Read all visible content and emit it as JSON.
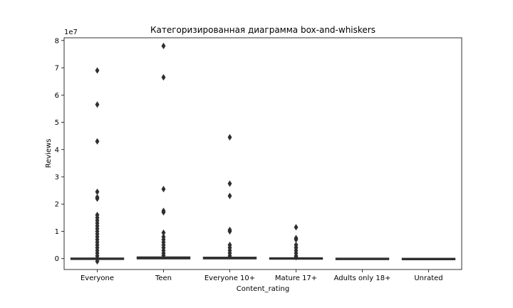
{
  "chart_data": {
    "type": "box",
    "title": "Категоризированная диаграмма box-and-whiskers",
    "xlabel": "Content_rating",
    "ylabel": "Reviews",
    "y_scale_label": "1e7",
    "categories": [
      "Everyone",
      "Teen",
      "Everyone 10+",
      "Mature 17+",
      "Adults only 18+",
      "Unrated"
    ],
    "ylim": [
      -0.4,
      8.1
    ],
    "yticks": [
      0,
      1,
      2,
      3,
      4,
      5,
      6,
      7,
      8
    ],
    "ytick_labels": [
      "0",
      "1",
      "2",
      "3",
      "4",
      "5",
      "6",
      "7",
      "8"
    ],
    "grid": false,
    "colors": {
      "box": "#2f2f2f",
      "axes": "#000000",
      "background": "#ffffff"
    },
    "boxes": [
      {
        "category": "Everyone",
        "q1": 0.0,
        "median": 0.0,
        "q3": 0.01,
        "whisker_low": 0.0,
        "whisker_high": 0.02,
        "outliers": [
          0.02,
          0.1,
          0.2,
          0.3,
          0.4,
          0.5,
          0.6,
          0.7,
          0.8,
          0.9,
          1.0,
          1.1,
          1.2,
          1.3,
          1.4,
          1.5,
          1.6,
          2.2,
          2.25,
          2.45,
          4.3,
          5.65,
          6.9,
          -0.1
        ]
      },
      {
        "category": "Teen",
        "q1": 0.0,
        "median": 0.01,
        "q3": 0.05,
        "whisker_low": 0.0,
        "whisker_high": 0.1,
        "outliers": [
          0.12,
          0.2,
          0.3,
          0.4,
          0.5,
          0.6,
          0.7,
          0.8,
          0.95,
          1.7,
          1.75,
          2.55,
          6.65,
          7.8
        ]
      },
      {
        "category": "Everyone 10+",
        "q1": 0.0,
        "median": 0.01,
        "q3": 0.04,
        "whisker_low": 0.0,
        "whisker_high": 0.08,
        "outliers": [
          0.1,
          0.2,
          0.3,
          0.4,
          0.5,
          1.0,
          1.05,
          2.3,
          2.75,
          4.45
        ]
      },
      {
        "category": "Mature 17+",
        "q1": 0.0,
        "median": 0.0,
        "q3": 0.02,
        "whisker_low": 0.0,
        "whisker_high": 0.04,
        "outliers": [
          0.05,
          0.1,
          0.2,
          0.3,
          0.4,
          0.5,
          0.7,
          0.75,
          1.15
        ]
      },
      {
        "category": "Adults only 18+",
        "q1": 0.0,
        "median": 0.0,
        "q3": 0.005,
        "whisker_low": 0.0,
        "whisker_high": 0.01,
        "outliers": []
      },
      {
        "category": "Unrated",
        "q1": 0.0,
        "median": 0.0,
        "q3": 0.0,
        "whisker_low": 0.0,
        "whisker_high": 0.0,
        "outliers": []
      }
    ]
  }
}
